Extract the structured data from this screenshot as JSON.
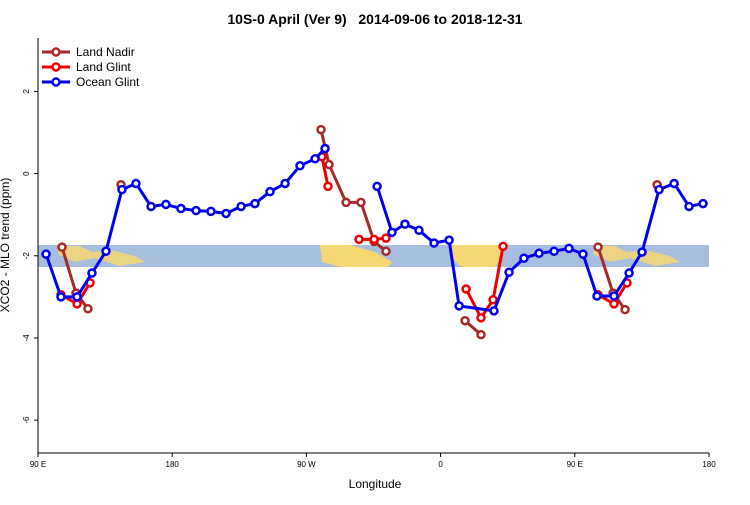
{
  "chart_data": {
    "type": "line",
    "title": "10S-0 April (Ver 9)   2014-09-06 to 2018-12-31",
    "x_label": "Longitude",
    "y_label": "XCO2 - MLO trend (ppm)",
    "xlim": [
      90,
      540
    ],
    "ylim": [
      -6.8,
      3.3
    ],
    "xticks": [
      {
        "value": 90,
        "label": "90 E"
      },
      {
        "value": 180,
        "label": "180"
      },
      {
        "value": 270,
        "label": "90 W"
      },
      {
        "value": 360,
        "label": "0"
      },
      {
        "value": 450,
        "label": "90 E"
      },
      {
        "value": 540,
        "label": "180"
      }
    ],
    "yticks": [
      2,
      0,
      -2,
      -4,
      -6
    ],
    "legend": "top-left",
    "series": [
      {
        "name": "Land Nadir",
        "color": "#a52a2a",
        "x": [
          106.1,
          115.5,
          123.5,
          null,
          145.7,
          null,
          279.8,
          285.2,
          296.6,
          306.6,
          315.4,
          323.4,
          null,
          376.4,
          387.1,
          null,
          465.6,
          475.7,
          483.7,
          null,
          505.2
        ],
        "values": [
          -1.79,
          -2.91,
          -3.29,
          null,
          -0.27,
          null,
          1.07,
          0.22,
          -0.7,
          -0.7,
          -1.65,
          -1.89,
          null,
          -3.58,
          -3.92,
          null,
          -1.79,
          -2.91,
          -3.31,
          null,
          -0.27
        ]
      },
      {
        "name": "Land Glint",
        "color": "#ee0000",
        "x": [
          105.4,
          116.2,
          124.9,
          null,
          280.4,
          284.5,
          null,
          305.3,
          315.4,
          323.4,
          null,
          377.1,
          387.1,
          395.2,
          401.9,
          null,
          465.6,
          476.3,
          485.0
        ],
        "values": [
          -2.95,
          -3.17,
          -2.66,
          null,
          0.41,
          -0.31,
          null,
          -1.6,
          -1.6,
          -1.57,
          null,
          -2.81,
          -3.51,
          -3.07,
          -1.77,
          null,
          -2.95,
          -3.17,
          -2.66
        ]
      },
      {
        "name": "Ocean Glint",
        "color": "#0000ee",
        "x": [
          95.4,
          105.4,
          116.2,
          126.2,
          135.6,
          146.3,
          155.7,
          165.8,
          175.8,
          185.9,
          196.0,
          206.0,
          216.1,
          226.2,
          235.5,
          245.6,
          255.7,
          265.7,
          275.8,
          282.5,
          null,
          317.4,
          327.4,
          336.1,
          345.5,
          355.6,
          365.7,
          372.4,
          395.8,
          405.9,
          415.9,
          426.0,
          436.1,
          446.1,
          455.5,
          464.9,
          476.3,
          486.4,
          495.1,
          506.5,
          516.6,
          526.6,
          536.0
        ],
        "values": [
          -1.96,
          -3.0,
          -3.0,
          -2.42,
          -1.89,
          -0.39,
          -0.24,
          -0.8,
          -0.75,
          -0.85,
          -0.9,
          -0.92,
          -0.97,
          -0.8,
          -0.73,
          -0.44,
          -0.24,
          0.19,
          0.36,
          0.61,
          null,
          -0.31,
          -1.43,
          -1.23,
          -1.38,
          -1.69,
          -1.62,
          -3.22,
          -3.34,
          -2.4,
          -2.06,
          -1.94,
          -1.89,
          -1.82,
          -1.96,
          -2.98,
          -2.98,
          -2.42,
          -1.91,
          -0.39,
          -0.24,
          -0.8,
          -0.73
        ]
      }
    ]
  }
}
